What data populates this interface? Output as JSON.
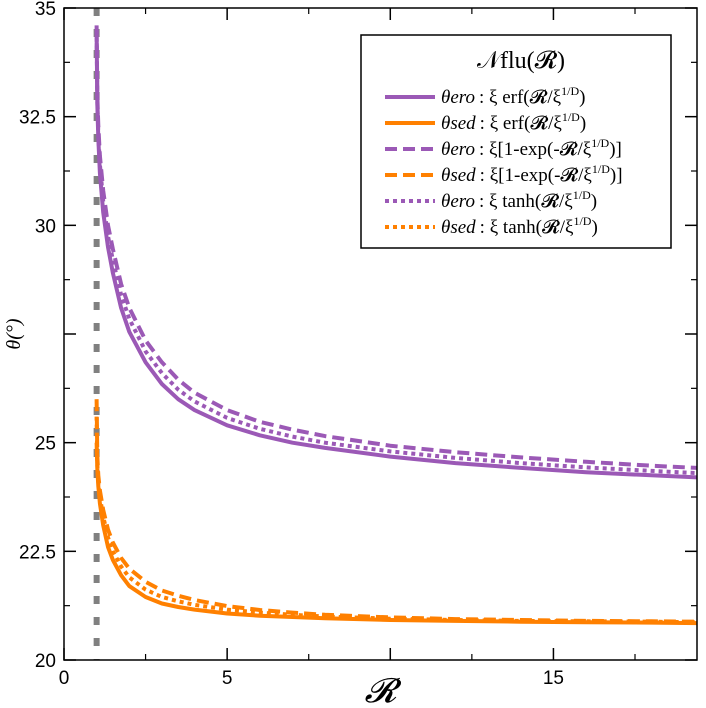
{
  "chart_data": {
    "type": "line",
    "title": "",
    "xlabel": "𝓡",
    "ylabel": "θ(°)",
    "xlim": [
      0,
      19.4
    ],
    "ylim": [
      20,
      35
    ],
    "xticks": [
      {
        "value": 0,
        "label": "0"
      },
      {
        "value": 5,
        "label": "5"
      },
      {
        "value": 10,
        "label": ""
      },
      {
        "value": 15,
        "label": "15"
      }
    ],
    "yticks": [
      {
        "value": 20,
        "label": "20"
      },
      {
        "value": 22.5,
        "label": "22.5"
      },
      {
        "value": 25,
        "label": "25"
      },
      {
        "value": 27.5,
        "label": ""
      },
      {
        "value": 30,
        "label": "30"
      },
      {
        "value": 32.5,
        "label": "32.5"
      },
      {
        "value": 35,
        "label": "35"
      }
    ],
    "vertical_marker": {
      "x": 1,
      "color": "#808080",
      "style": "dashed"
    },
    "legend": {
      "title": "𝒩flu(𝓡)",
      "position": "top-right",
      "entries": [
        {
          "series": "ero_erf",
          "symbol": "θero",
          "formula_pre": ": ξ erf(𝓡/ξ",
          "sup": "1/D",
          "formula_post": ")",
          "color": "#9b59b6",
          "style": "solid"
        },
        {
          "series": "sed_erf",
          "symbol": "θsed",
          "formula_pre": ": ξ erf(𝓡/ξ",
          "sup": "1/D",
          "formula_post": ")",
          "color": "#ff8000",
          "style": "solid"
        },
        {
          "series": "ero_exp",
          "symbol": "θero",
          "formula_pre": ": ξ[1-exp(-𝓡/ξ",
          "sup": "1/D",
          "formula_post": ")]",
          "color": "#9b59b6",
          "style": "dashed"
        },
        {
          "series": "sed_exp",
          "symbol": "θsed",
          "formula_pre": ": ξ[1-exp(-𝓡/ξ",
          "sup": "1/D",
          "formula_post": ")]",
          "color": "#ff8000",
          "style": "dashed"
        },
        {
          "series": "ero_tanh",
          "symbol": "θero",
          "formula_pre": ": ξ tanh(𝓡/ξ",
          "sup": "1/D",
          "formula_post": ")",
          "color": "#9b59b6",
          "style": "dotted"
        },
        {
          "series": "sed_tanh",
          "symbol": "θsed",
          "formula_pre": ": ξ tanh(𝓡/ξ",
          "sup": "1/D",
          "formula_post": ")",
          "color": "#ff8000",
          "style": "dotted"
        }
      ]
    },
    "series": [
      {
        "id": "ero_erf",
        "color": "#9b59b6",
        "style": "solid",
        "x": [
          1.0,
          1.02,
          1.05,
          1.1,
          1.2,
          1.35,
          1.5,
          1.75,
          2.0,
          2.5,
          3.0,
          3.5,
          4.0,
          5.0,
          6.0,
          7.0,
          8.0,
          10.0,
          12.0,
          14.0,
          16.0,
          18.0,
          19.4
        ],
        "y": [
          34.5,
          32.8,
          32.0,
          31.2,
          30.3,
          29.5,
          28.9,
          28.1,
          27.55,
          26.85,
          26.35,
          26.0,
          25.75,
          25.4,
          25.17,
          25.0,
          24.88,
          24.68,
          24.53,
          24.42,
          24.32,
          24.25,
          24.2
        ]
      },
      {
        "id": "ero_exp",
        "color": "#9b59b6",
        "style": "dashed",
        "x": [
          1.0,
          1.02,
          1.05,
          1.1,
          1.2,
          1.35,
          1.5,
          1.75,
          2.0,
          2.5,
          3.0,
          3.5,
          4.0,
          5.0,
          6.0,
          7.0,
          8.0,
          10.0,
          12.0,
          14.0,
          16.0,
          18.0,
          19.4
        ],
        "y": [
          34.6,
          33.0,
          32.3,
          31.6,
          30.8,
          30.0,
          29.45,
          28.65,
          28.1,
          27.35,
          26.85,
          26.45,
          26.15,
          25.75,
          25.48,
          25.3,
          25.15,
          24.93,
          24.78,
          24.66,
          24.56,
          24.47,
          24.42
        ]
      },
      {
        "id": "ero_tanh",
        "color": "#9b59b6",
        "style": "dotted",
        "x": [
          1.0,
          1.02,
          1.05,
          1.1,
          1.2,
          1.35,
          1.5,
          1.75,
          2.0,
          2.5,
          3.0,
          3.5,
          4.0,
          5.0,
          6.0,
          7.0,
          8.0,
          10.0,
          12.0,
          14.0,
          16.0,
          18.0,
          19.4
        ],
        "y": [
          34.5,
          32.9,
          32.1,
          31.4,
          30.55,
          29.75,
          29.2,
          28.4,
          27.85,
          27.1,
          26.6,
          26.22,
          25.95,
          25.57,
          25.32,
          25.14,
          25.0,
          24.8,
          24.65,
          24.53,
          24.43,
          24.35,
          24.3
        ]
      },
      {
        "id": "sed_erf",
        "color": "#ff8000",
        "style": "solid",
        "x": [
          1.0,
          1.02,
          1.05,
          1.1,
          1.2,
          1.35,
          1.5,
          1.75,
          2.0,
          2.5,
          3.0,
          3.5,
          4.0,
          5.0,
          6.0,
          7.0,
          8.0,
          10.0,
          12.0,
          14.0,
          16.0,
          18.0,
          19.4
        ],
        "y": [
          25.0,
          24.4,
          24.0,
          23.6,
          23.1,
          22.6,
          22.3,
          21.95,
          21.7,
          21.45,
          21.3,
          21.22,
          21.16,
          21.07,
          21.02,
          20.99,
          20.96,
          20.92,
          20.9,
          20.88,
          20.87,
          20.86,
          20.85
        ]
      },
      {
        "id": "sed_exp",
        "color": "#ff8000",
        "style": "dashed",
        "x": [
          1.0,
          1.02,
          1.05,
          1.1,
          1.2,
          1.35,
          1.5,
          1.75,
          2.0,
          2.5,
          3.0,
          3.5,
          4.0,
          5.0,
          6.0,
          7.0,
          8.0,
          10.0,
          12.0,
          14.0,
          16.0,
          18.0,
          19.4
        ],
        "y": [
          26.0,
          24.7,
          24.25,
          23.9,
          23.45,
          23.0,
          22.7,
          22.35,
          22.1,
          21.8,
          21.6,
          21.48,
          21.38,
          21.24,
          21.15,
          21.09,
          21.04,
          20.98,
          20.94,
          20.92,
          20.9,
          20.89,
          20.88
        ]
      },
      {
        "id": "sed_tanh",
        "color": "#ff8000",
        "style": "dotted",
        "x": [
          1.0,
          1.02,
          1.05,
          1.1,
          1.2,
          1.35,
          1.5,
          1.75,
          2.0,
          2.5,
          3.0,
          3.5,
          4.0,
          5.0,
          6.0,
          7.0,
          8.0,
          10.0,
          12.0,
          14.0,
          16.0,
          18.0,
          19.4
        ],
        "y": [
          25.6,
          24.5,
          24.1,
          23.75,
          23.3,
          22.82,
          22.5,
          22.15,
          21.9,
          21.62,
          21.45,
          21.35,
          21.27,
          21.16,
          21.09,
          21.04,
          21.0,
          20.95,
          20.92,
          20.9,
          20.89,
          20.88,
          20.87
        ]
      }
    ]
  }
}
